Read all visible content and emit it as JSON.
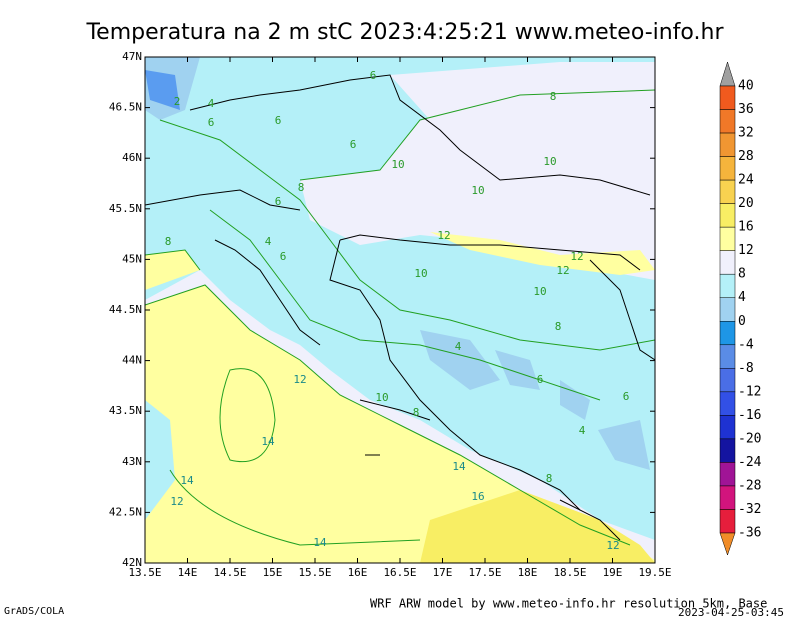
{
  "title": "Temperatura na 2 m stC 2023:4:25:21 www.meteo-info.hr",
  "lon_ticks": [
    "13.5E",
    "14E",
    "14.5E",
    "15E",
    "15.5E",
    "16E",
    "16.5E",
    "17E",
    "17.5E",
    "18E",
    "18.5E",
    "19E",
    "19.5E"
  ],
  "lat_ticks": [
    "47N",
    "46.5N",
    "46N",
    "45.5N",
    "45N",
    "44.5N",
    "44N",
    "43.5N",
    "43N",
    "42.5N",
    "42N"
  ],
  "colorbar": {
    "labels": [
      40,
      36,
      32,
      28,
      24,
      20,
      16,
      12,
      8,
      4,
      0,
      -4,
      -8,
      -12,
      -16,
      -20,
      -24,
      -28,
      -32,
      -36
    ],
    "colors": [
      "#a0a0a0",
      "#f05a1e",
      "#f07828",
      "#f09632",
      "#f5b43c",
      "#f8d250",
      "#f8ee64",
      "#ffffa0",
      "#f0f0fc",
      "#b4f0f8",
      "#a0d2f0",
      "#1e96e6",
      "#5a8ce6",
      "#4a6ee6",
      "#3250e6",
      "#1e32d2",
      "#1414a0",
      "#a01496",
      "#d2147d",
      "#e61e3c",
      "#f08c28"
    ]
  },
  "contour_labels": [
    2,
    4,
    6,
    6,
    6,
    8,
    6,
    10,
    8,
    6,
    10,
    10,
    4,
    6,
    8,
    12,
    10,
    12,
    10,
    12,
    8,
    4,
    6,
    6,
    10,
    8,
    12,
    14,
    14,
    12,
    14,
    16,
    14,
    12,
    4,
    8
  ],
  "footer_left": "GrADS/COLA",
  "footer_right": "WRF ARW model by www.meteo-info.hr resolution 5km, Base",
  "timestamp": "2023-04-25-03:45"
}
